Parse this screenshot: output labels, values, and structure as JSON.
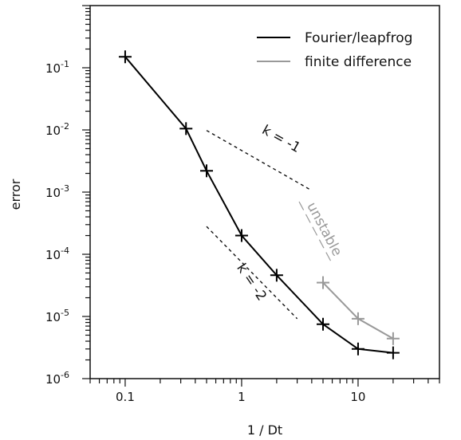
{
  "chart_data": {
    "type": "line",
    "xscale": "log",
    "yscale": "log",
    "xlabel": "1 / Dt",
    "ylabel": "error",
    "xlim": [
      0.05,
      50
    ],
    "ylim": [
      1e-06,
      1
    ],
    "x_tick_labels": [
      {
        "value": 0.1,
        "label": "0.1"
      },
      {
        "value": 1,
        "label": "1"
      },
      {
        "value": 10,
        "label": "10"
      }
    ],
    "y_tick_labels": [
      {
        "value": 1e-06,
        "base": "10",
        "exp": "-6"
      },
      {
        "value": 1e-05,
        "base": "10",
        "exp": "-5"
      },
      {
        "value": 0.0001,
        "base": "10",
        "exp": "-4"
      },
      {
        "value": 0.001,
        "base": "10",
        "exp": "-3"
      },
      {
        "value": 0.01,
        "base": "10",
        "exp": "-2"
      },
      {
        "value": 0.1,
        "base": "10",
        "exp": "-1"
      }
    ],
    "series": [
      {
        "name": "Fourier/leapfrog",
        "color": "#000000",
        "marker": "plus",
        "x": [
          0.1,
          0.333,
          0.5,
          1,
          2,
          5,
          10,
          20
        ],
        "y": [
          0.15,
          0.0105,
          0.0022,
          0.0002,
          4.6e-05,
          7.5e-06,
          3e-06,
          2.6e-06
        ]
      },
      {
        "name": "finite difference",
        "color": "#999999",
        "marker": "plus",
        "x": [
          5,
          10,
          20
        ],
        "y": [
          3.5e-05,
          9.2e-06,
          4.4e-06
        ]
      }
    ],
    "reference_lines": [
      {
        "label": "k = -1",
        "x": [
          0.5,
          4
        ],
        "y": [
          0.0098,
          0.00106
        ]
      },
      {
        "label": "k = -2",
        "x": [
          0.5,
          3
        ],
        "y": [
          0.00028,
          9.2e-06
        ]
      }
    ],
    "annotations": [
      {
        "text": "unstable",
        "color": "#999999"
      }
    ],
    "legend_position": "top-right"
  }
}
